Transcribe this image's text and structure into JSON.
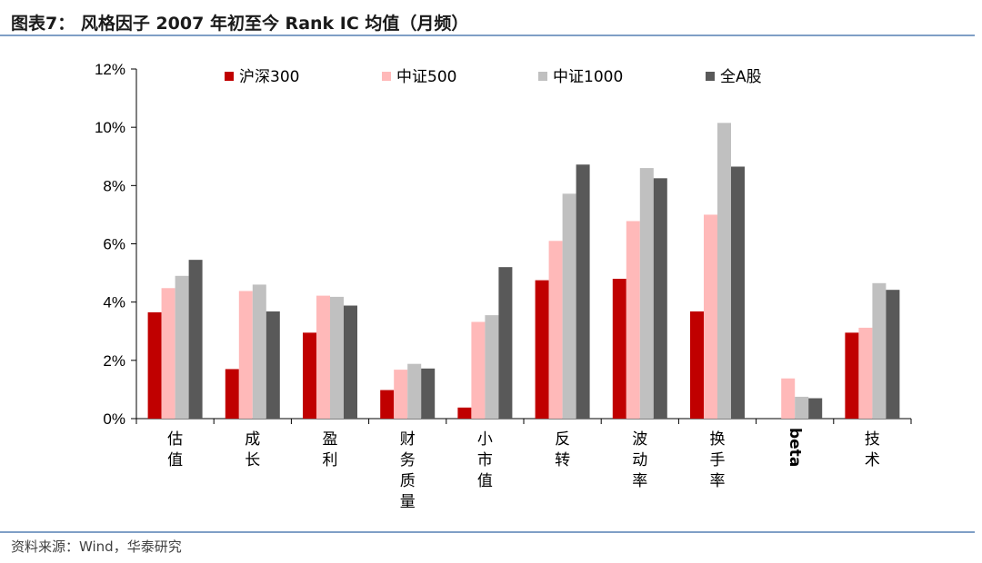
{
  "figure": {
    "title": "图表7： 风格因子 2007 年初至今 Rank IC 均值（月频）",
    "source": "资料来源：Wind，华泰研究"
  },
  "chart_data": {
    "type": "bar",
    "categories": [
      "估值",
      "成长",
      "盈利",
      "财务质量",
      "小市值",
      "反转",
      "波动率",
      "换手率",
      "beta",
      "技术"
    ],
    "vertical_category_labels": true,
    "series": [
      {
        "name": "沪深300",
        "color": "#c00000",
        "values": [
          3.65,
          1.7,
          2.95,
          0.98,
          0.38,
          4.75,
          4.8,
          3.68,
          0.0,
          2.95
        ]
      },
      {
        "name": "中证500",
        "color": "#ffb9b9",
        "values": [
          4.48,
          4.38,
          4.22,
          1.68,
          3.32,
          6.1,
          6.78,
          7.0,
          1.38,
          3.12
        ]
      },
      {
        "name": "中证1000",
        "color": "#c0c0c0",
        "values": [
          4.9,
          4.6,
          4.18,
          1.88,
          3.55,
          7.72,
          8.6,
          10.15,
          0.75,
          4.65
        ]
      },
      {
        "name": "全A股",
        "color": "#595959",
        "values": [
          5.45,
          3.68,
          3.88,
          1.72,
          5.2,
          8.72,
          8.25,
          8.65,
          0.7,
          4.42
        ]
      }
    ],
    "y_unit": "%",
    "ylim": [
      0,
      12
    ],
    "y_ticks": [
      0,
      2,
      4,
      6,
      8,
      10,
      12
    ],
    "y_tick_labels": [
      "0%",
      "2%",
      "4%",
      "6%",
      "8%",
      "10%",
      "12%"
    ],
    "xlabel": "",
    "ylabel": "",
    "grid": false,
    "legend_position": "top"
  }
}
